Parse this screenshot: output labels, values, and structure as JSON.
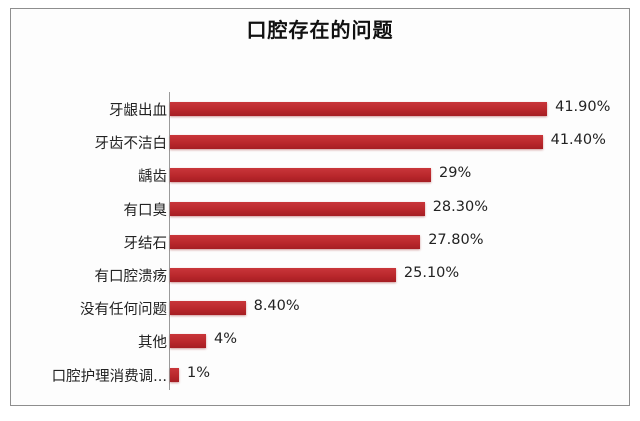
{
  "chart_data": {
    "type": "bar",
    "orientation": "horizontal",
    "title": "口腔存在的问题",
    "xlabel": "",
    "ylabel": "",
    "grid": false,
    "legend": null,
    "bar_color": "#b8262b",
    "categories": [
      "牙龈出血",
      "牙齿不洁白",
      "龋齿",
      "有口臭",
      "牙结石",
      "有口腔溃疡",
      "没有任何问题",
      "其他",
      "口腔护理消费调..."
    ],
    "values": [
      41.9,
      41.4,
      29,
      28.3,
      27.8,
      25.1,
      8.4,
      4,
      1
    ],
    "data_labels": [
      "41.90%",
      "41.40%",
      "29%",
      "28.30%",
      "27.80%",
      "25.10%",
      "8.40%",
      "4%",
      "1%"
    ],
    "xlim": [
      0,
      42
    ]
  }
}
